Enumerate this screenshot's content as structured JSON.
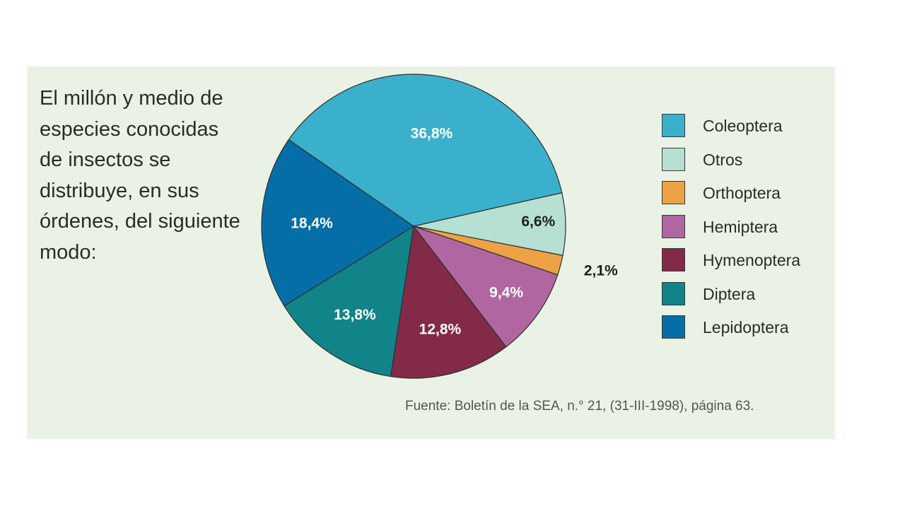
{
  "intro_text": "El millón y medio de especies conocidas de insectos se distribuye, en sus órdenes, del siguiente modo:",
  "source_note": "Fuente: Boletín de la SEA, n.° 21, (31-III-1998), página 63.",
  "chart_data": {
    "type": "pie",
    "title": "",
    "slices": [
      {
        "name": "Coleoptera",
        "value": 36.8,
        "label": "36,8%",
        "color": "#3bb0cc",
        "label_color": "#ffffff"
      },
      {
        "name": "Otros",
        "value": 6.6,
        "label": "6,6%",
        "color": "#b5e0d2",
        "label_color": "#1e1e1e"
      },
      {
        "name": "Orthoptera",
        "value": 2.1,
        "label": "2,1%",
        "color": "#eda246",
        "label_color": "#1e1e1e"
      },
      {
        "name": "Hemiptera",
        "value": 9.4,
        "label": "9,4%",
        "color": "#b067a1",
        "label_color": "#ffffff"
      },
      {
        "name": "Hymenoptera",
        "value": 12.8,
        "label": "12,8%",
        "color": "#822a48",
        "label_color": "#ffffff"
      },
      {
        "name": "Diptera",
        "value": 13.8,
        "label": "13,8%",
        "color": "#108489",
        "label_color": "#ffffff"
      },
      {
        "name": "Lepidoptera",
        "value": 18.4,
        "label": "18,4%",
        "color": "#066ea6",
        "label_color": "#ffffff"
      }
    ],
    "legend_position": "right"
  }
}
